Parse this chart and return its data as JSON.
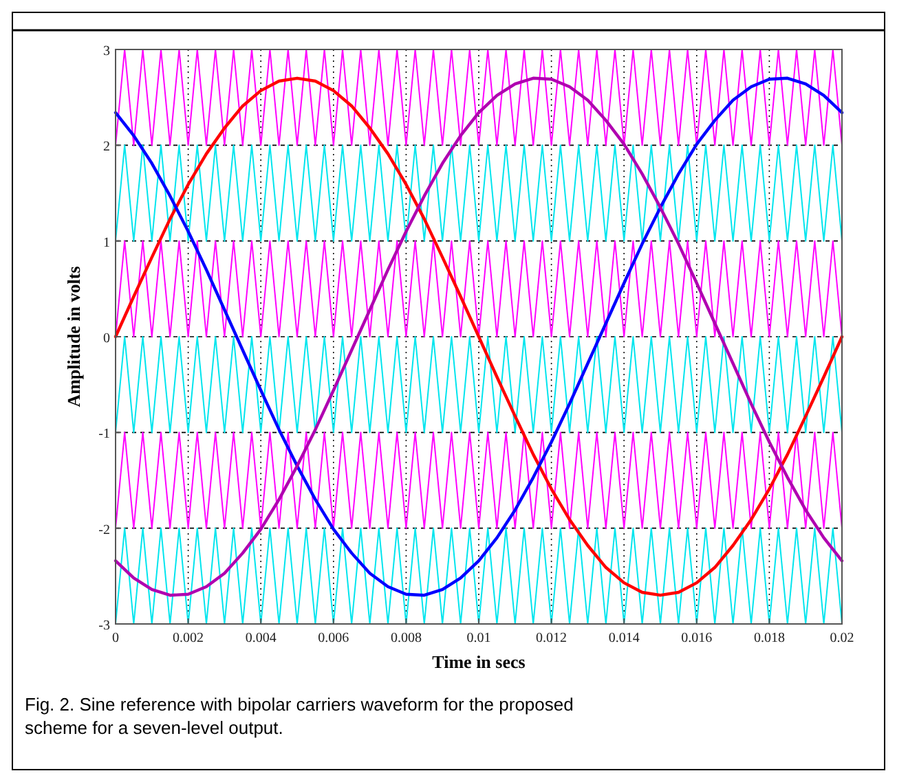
{
  "chart_data": {
    "type": "line",
    "xlabel": "Time in secs",
    "ylabel": "Amplitude in volts",
    "annotations": [
      "Fig. 2. Sine reference with bipolar carriers waveform for the proposed scheme for a seven-level output."
    ],
    "xlim": [
      0,
      0.02
    ],
    "ylim": [
      -3,
      3
    ],
    "xticks": [
      0,
      0.002,
      0.004,
      0.006,
      0.008,
      0.01,
      0.012,
      0.014,
      0.016,
      0.018,
      0.02
    ],
    "yticks": [
      -3,
      -2,
      -1,
      0,
      1,
      2,
      3
    ],
    "grid": true,
    "marker": "none",
    "line_style": "solid",
    "x": [
      0,
      0.00025,
      0.0005,
      0.00075,
      0.001,
      0.00125,
      0.0015,
      0.00175,
      0.002,
      0.00225,
      0.0025,
      0.00275,
      0.003,
      0.00325,
      0.0035,
      0.00375,
      0.004,
      0.00425,
      0.0045,
      0.00475,
      0.005,
      0.00525,
      0.0055,
      0.00575,
      0.006,
      0.00625,
      0.0065,
      0.00675,
      0.007,
      0.00725,
      0.0075,
      0.00775,
      0.008,
      0.00825,
      0.0085,
      0.00875,
      0.009,
      0.00925,
      0.0095,
      0.00975,
      0.01,
      0.01025,
      0.0105,
      0.01075,
      0.011,
      0.01125,
      0.0115,
      0.01175,
      0.012,
      0.01225,
      0.0125,
      0.01275,
      0.013,
      0.01325,
      0.0135,
      0.01375,
      0.014,
      0.01425,
      0.0145,
      0.01475,
      0.015,
      0.01525,
      0.0155,
      0.01575,
      0.016,
      0.01625,
      0.0165,
      0.01675,
      0.017,
      0.01725,
      0.0175,
      0.01775,
      0.018,
      0.01825,
      0.0185,
      0.01875,
      0.019,
      0.01925,
      0.0195,
      0.01975,
      0.02
    ],
    "series": [
      {
        "color": "#ff00ff",
        "values": [
          2,
          3,
          2,
          3,
          2,
          3,
          2,
          3,
          2,
          3,
          2,
          3,
          2,
          3,
          2,
          3,
          2,
          3,
          2,
          3,
          2,
          3,
          2,
          3,
          2,
          3,
          2,
          3,
          2,
          3,
          2,
          3,
          2,
          3,
          2,
          3,
          2,
          3,
          2,
          3,
          2,
          3,
          2,
          3,
          2,
          3,
          2,
          3,
          2,
          3,
          2,
          3,
          2,
          3,
          2,
          3,
          2,
          3,
          2,
          3,
          2,
          3,
          2,
          3,
          2,
          3,
          2,
          3,
          2,
          3,
          2,
          3,
          2,
          3,
          2,
          3,
          2,
          3,
          2,
          3,
          2
        ]
      },
      {
        "color": "#00e5ee",
        "values": [
          1,
          2,
          1,
          2,
          1,
          2,
          1,
          2,
          1,
          2,
          1,
          2,
          1,
          2,
          1,
          2,
          1,
          2,
          1,
          2,
          1,
          2,
          1,
          2,
          1,
          2,
          1,
          2,
          1,
          2,
          1,
          2,
          1,
          2,
          1,
          2,
          1,
          2,
          1,
          2,
          1,
          2,
          1,
          2,
          1,
          2,
          1,
          2,
          1,
          2,
          1,
          2,
          1,
          2,
          1,
          2,
          1,
          2,
          1,
          2,
          1,
          2,
          1,
          2,
          1,
          2,
          1,
          2,
          1,
          2,
          1,
          2,
          1,
          2,
          1,
          2,
          1,
          2,
          1,
          2,
          1
        ]
      },
      {
        "color": "#ff00ff",
        "values": [
          0,
          1,
          0,
          1,
          0,
          1,
          0,
          1,
          0,
          1,
          0,
          1,
          0,
          1,
          0,
          1,
          0,
          1,
          0,
          1,
          0,
          1,
          0,
          1,
          0,
          1,
          0,
          1,
          0,
          1,
          0,
          1,
          0,
          1,
          0,
          1,
          0,
          1,
          0,
          1,
          0,
          1,
          0,
          1,
          0,
          1,
          0,
          1,
          0,
          1,
          0,
          1,
          0,
          1,
          0,
          1,
          0,
          1,
          0,
          1,
          0,
          1,
          0,
          1,
          0,
          1,
          0,
          1,
          0,
          1,
          0,
          1,
          0,
          1,
          0,
          1,
          0,
          1,
          0,
          1,
          0
        ]
      },
      {
        "color": "#00e5ee",
        "values": [
          -1,
          0,
          -1,
          0,
          -1,
          0,
          -1,
          0,
          -1,
          0,
          -1,
          0,
          -1,
          0,
          -1,
          0,
          -1,
          0,
          -1,
          0,
          -1,
          0,
          -1,
          0,
          -1,
          0,
          -1,
          0,
          -1,
          0,
          -1,
          0,
          -1,
          0,
          -1,
          0,
          -1,
          0,
          -1,
          0,
          -1,
          0,
          -1,
          0,
          -1,
          0,
          -1,
          0,
          -1,
          0,
          -1,
          0,
          -1,
          0,
          -1,
          0,
          -1,
          0,
          -1,
          0,
          -1,
          0,
          -1,
          0,
          -1,
          0,
          -1,
          0,
          -1,
          0,
          -1,
          0,
          -1,
          0,
          -1,
          0,
          -1,
          0,
          -1,
          0,
          -1
        ]
      },
      {
        "color": "#ff00ff",
        "values": [
          -2,
          -1,
          -2,
          -1,
          -2,
          -1,
          -2,
          -1,
          -2,
          -1,
          -2,
          -1,
          -2,
          -1,
          -2,
          -1,
          -2,
          -1,
          -2,
          -1,
          -2,
          -1,
          -2,
          -1,
          -2,
          -1,
          -2,
          -1,
          -2,
          -1,
          -2,
          -1,
          -2,
          -1,
          -2,
          -1,
          -2,
          -1,
          -2,
          -1,
          -2,
          -1,
          -2,
          -1,
          -2,
          -1,
          -2,
          -1,
          -2,
          -1,
          -2,
          -1,
          -2,
          -1,
          -2,
          -1,
          -2,
          -1,
          -2,
          -1,
          -2,
          -1,
          -2,
          -1,
          -2,
          -1,
          -2,
          -1,
          -2,
          -1,
          -2,
          -1,
          -2,
          -1,
          -2,
          -1,
          -2,
          -1,
          -2,
          -1,
          -2
        ]
      },
      {
        "color": "#00e5ee",
        "values": [
          -3,
          -2,
          -3,
          -2,
          -3,
          -2,
          -3,
          -2,
          -3,
          -2,
          -3,
          -2,
          -3,
          -2,
          -3,
          -2,
          -3,
          -2,
          -3,
          -2,
          -3,
          -2,
          -3,
          -2,
          -3,
          -2,
          -3,
          -2,
          -3,
          -2,
          -3,
          -2,
          -3,
          -2,
          -3,
          -2,
          -3,
          -2,
          -3,
          -2,
          -3,
          -2,
          -3,
          -2,
          -3,
          -2,
          -3,
          -2,
          -3,
          -2,
          -3,
          -2,
          -3,
          -2,
          -3,
          -2,
          -3,
          -2,
          -3,
          -2,
          -3,
          -2,
          -3,
          -2,
          -3,
          -2,
          -3,
          -2,
          -3,
          -2,
          -3,
          -2,
          -3,
          -2,
          -3,
          -2,
          -3,
          -2,
          -3,
          -2,
          -3
        ]
      },
      {
        "color": "#ff0000",
        "x": [
          0,
          0.0005,
          0.001,
          0.0015,
          0.002,
          0.0025,
          0.003,
          0.0035,
          0.004,
          0.0045,
          0.005,
          0.0055,
          0.006,
          0.0065,
          0.007,
          0.0075,
          0.008,
          0.0085,
          0.009,
          0.0095,
          0.01,
          0.0105,
          0.011,
          0.0115,
          0.012,
          0.0125,
          0.013,
          0.0135,
          0.014,
          0.0145,
          0.015,
          0.0155,
          0.016,
          0.0165,
          0.017,
          0.0175,
          0.018,
          0.0185,
          0.019,
          0.0195,
          0.02
        ],
        "values": [
          0,
          0.42,
          0.83,
          1.23,
          1.59,
          1.91,
          2.18,
          2.41,
          2.57,
          2.67,
          2.7,
          2.67,
          2.57,
          2.41,
          2.18,
          1.91,
          1.59,
          1.23,
          0.83,
          0.42,
          0,
          -0.42,
          -0.83,
          -1.23,
          -1.59,
          -1.91,
          -2.18,
          -2.41,
          -2.57,
          -2.67,
          -2.7,
          -2.67,
          -2.57,
          -2.41,
          -2.18,
          -1.91,
          -1.59,
          -1.23,
          -0.83,
          -0.42,
          0
        ]
      },
      {
        "color": "#0000ff",
        "x": [
          0,
          0.0005,
          0.001,
          0.0015,
          0.002,
          0.0025,
          0.003,
          0.0035,
          0.004,
          0.0045,
          0.005,
          0.0055,
          0.006,
          0.0065,
          0.007,
          0.0075,
          0.008,
          0.0085,
          0.009,
          0.0095,
          0.01,
          0.0105,
          0.011,
          0.0115,
          0.012,
          0.0125,
          0.013,
          0.0135,
          0.014,
          0.0145,
          0.015,
          0.0155,
          0.016,
          0.0165,
          0.017,
          0.0175,
          0.018,
          0.0185,
          0.019,
          0.0195,
          0.02
        ],
        "values": [
          2.34,
          2.1,
          1.81,
          1.47,
          1.1,
          0.7,
          0.28,
          -0.14,
          -0.56,
          -0.97,
          -1.35,
          -1.7,
          -2.01,
          -2.26,
          -2.47,
          -2.61,
          -2.69,
          -2.7,
          -2.64,
          -2.52,
          -2.34,
          -2.1,
          -1.81,
          -1.47,
          -1.1,
          -0.7,
          -0.28,
          0.14,
          0.56,
          0.97,
          1.35,
          1.7,
          2.01,
          2.26,
          2.47,
          2.61,
          2.69,
          2.7,
          2.64,
          2.52,
          2.34
        ]
      },
      {
        "color": "#b000b0",
        "x": [
          0,
          0.0005,
          0.001,
          0.0015,
          0.002,
          0.0025,
          0.003,
          0.0035,
          0.004,
          0.0045,
          0.005,
          0.0055,
          0.006,
          0.0065,
          0.007,
          0.0075,
          0.008,
          0.0085,
          0.009,
          0.0095,
          0.01,
          0.0105,
          0.011,
          0.0115,
          0.012,
          0.0125,
          0.013,
          0.0135,
          0.014,
          0.0145,
          0.015,
          0.0155,
          0.016,
          0.0165,
          0.017,
          0.0175,
          0.018,
          0.0185,
          0.019,
          0.0195,
          0.02
        ],
        "values": [
          -2.34,
          -2.52,
          -2.64,
          -2.7,
          -2.69,
          -2.61,
          -2.47,
          -2.26,
          -2.01,
          -1.7,
          -1.35,
          -0.97,
          -0.56,
          -0.14,
          0.28,
          0.7,
          1.1,
          1.47,
          1.81,
          2.1,
          2.34,
          2.52,
          2.64,
          2.7,
          2.69,
          2.61,
          2.47,
          2.26,
          2.01,
          1.7,
          1.35,
          0.97,
          0.56,
          0.14,
          -0.28,
          -0.7,
          -1.1,
          -1.47,
          -1.81,
          -2.1,
          -2.34
        ]
      }
    ]
  }
}
